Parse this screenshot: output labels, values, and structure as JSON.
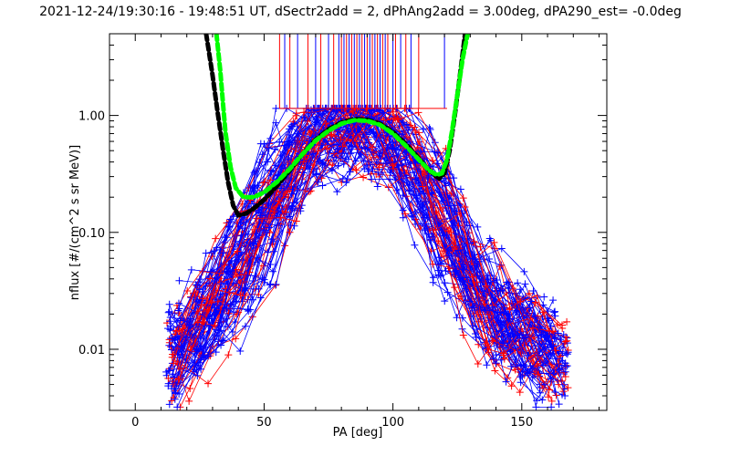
{
  "chart_data": {
    "type": "line",
    "title": "2021-12-24/19:30:16 - 19:48:51 UT, dSectr2add = 2, dPhAng2add = 3.00deg, dPA290_est=  -0.0deg",
    "xlabel": "PA [deg]",
    "ylabel": "nflux [#/(cm^2 s sr MeV)]",
    "xlim": [
      -10,
      183
    ],
    "ylim": [
      0.003,
      5.0
    ],
    "yscale": "log",
    "xticks": [
      0,
      50,
      100,
      150
    ],
    "xtick_labels": [
      "0",
      "50",
      "100",
      "150"
    ],
    "yticks": [
      0.01,
      0.1,
      1.0
    ],
    "ytick_labels": [
      "0.01",
      "0.10",
      "1.00"
    ],
    "grid": false,
    "colors": {
      "red": "#ff0000",
      "blue": "#0000ff",
      "black": "#000000",
      "green": "#00ff00"
    },
    "series": [
      {
        "color": "#000000",
        "style": "dashed-thick",
        "x": [
          27.5,
          30,
          32,
          34,
          36,
          38,
          40,
          43,
          46,
          50,
          55,
          60,
          65,
          70,
          75,
          80,
          85,
          90,
          95,
          100,
          105,
          110,
          113,
          116,
          118,
          120,
          122,
          124,
          126,
          128
        ],
        "y": [
          5.0,
          2.2,
          1.05,
          0.52,
          0.27,
          0.17,
          0.14,
          0.145,
          0.16,
          0.19,
          0.25,
          0.34,
          0.47,
          0.62,
          0.76,
          0.87,
          0.93,
          0.92,
          0.85,
          0.72,
          0.57,
          0.43,
          0.36,
          0.31,
          0.29,
          0.32,
          0.5,
          1.0,
          2.2,
          5.0
        ]
      },
      {
        "color": "#00ff00",
        "style": "dashed-thick",
        "x": [
          31.5,
          33,
          34,
          35,
          37,
          39,
          42,
          46,
          50,
          55,
          60,
          65,
          70,
          75,
          80,
          85,
          90,
          95,
          100,
          105,
          110,
          114,
          117,
          119,
          121,
          123,
          125,
          127,
          129
        ],
        "y": [
          5.0,
          2.4,
          1.3,
          0.72,
          0.36,
          0.24,
          0.2,
          0.2,
          0.22,
          0.27,
          0.35,
          0.47,
          0.61,
          0.74,
          0.85,
          0.91,
          0.9,
          0.83,
          0.7,
          0.55,
          0.42,
          0.34,
          0.31,
          0.32,
          0.42,
          0.75,
          1.5,
          3.0,
          5.0
        ]
      }
    ],
    "scatter_profile": {
      "description_source": "many red and blue measured PA distribution curves with + markers",
      "x": [
        10,
        15,
        20,
        25,
        30,
        35,
        40,
        45,
        50,
        55,
        60,
        65,
        70,
        75,
        80,
        85,
        90,
        95,
        100,
        105,
        110,
        115,
        120,
        125,
        130,
        135,
        140,
        145,
        150,
        155,
        160,
        165,
        170
      ],
      "y_center": [
        0.008,
        0.01,
        0.013,
        0.018,
        0.025,
        0.036,
        0.055,
        0.09,
        0.15,
        0.25,
        0.4,
        0.58,
        0.75,
        0.86,
        0.92,
        0.94,
        0.92,
        0.85,
        0.72,
        0.55,
        0.38,
        0.24,
        0.14,
        0.08,
        0.045,
        0.03,
        0.022,
        0.018,
        0.015,
        0.013,
        0.011,
        0.009,
        0.008
      ]
    },
    "spikes_x": [
      56,
      58,
      60,
      63,
      67,
      70,
      72,
      75,
      77,
      79,
      80,
      81,
      82,
      83,
      84,
      85,
      86,
      87,
      88,
      89,
      90,
      91,
      92,
      93,
      94,
      95,
      96,
      97,
      98,
      100,
      101,
      103,
      105,
      107,
      110,
      120
    ]
  }
}
